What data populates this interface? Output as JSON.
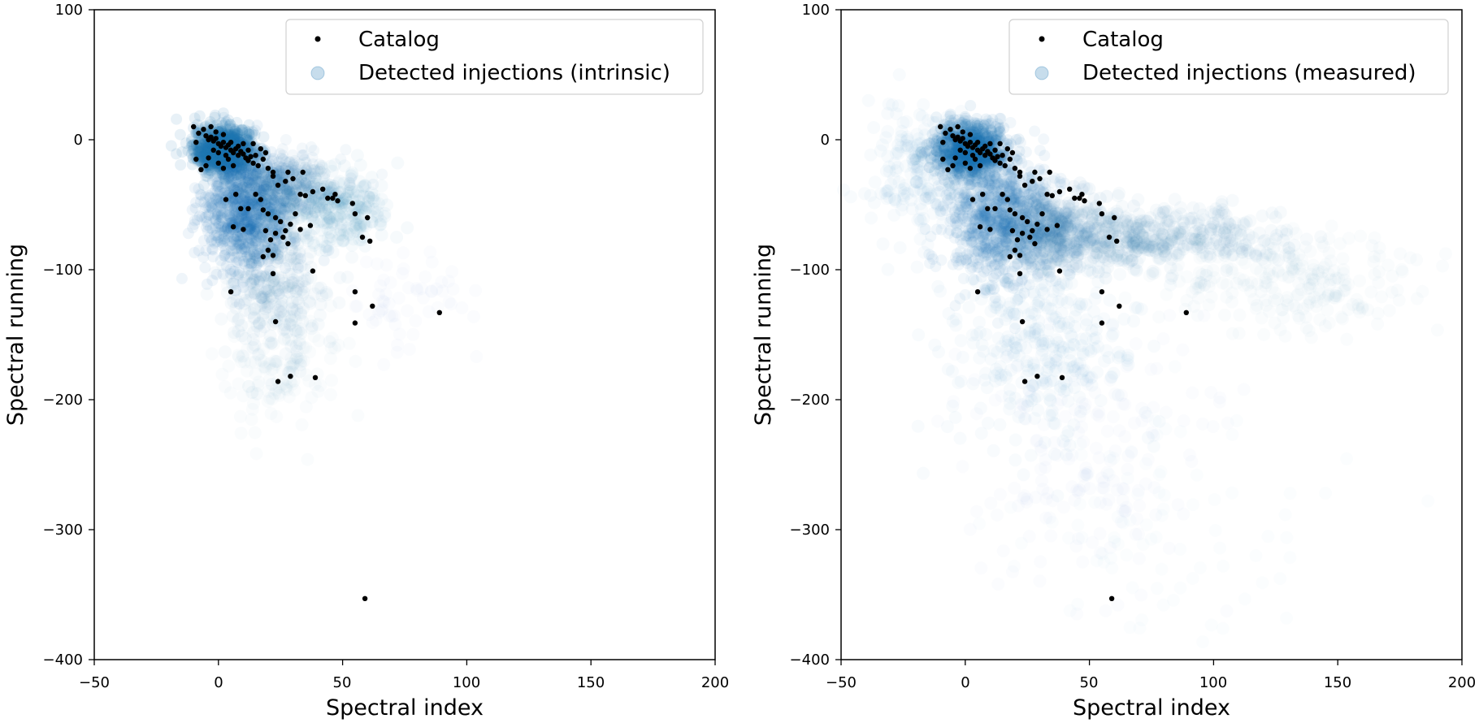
{
  "chart_data": [
    {
      "type": "scatter",
      "title": "",
      "xlabel": "Spectral index",
      "ylabel": "Spectral running",
      "xlim": [
        -50,
        200
      ],
      "ylim": [
        -400,
        100
      ],
      "xticks": [
        -50,
        0,
        50,
        100,
        150,
        200
      ],
      "yticks": [
        100,
        0,
        -100,
        -200,
        -300,
        -400
      ],
      "xtick_labels": [
        "−50",
        "0",
        "50",
        "100",
        "150",
        "200"
      ],
      "ytick_labels": [
        "100",
        "0",
        "−100",
        "−200",
        "−300",
        "−400"
      ],
      "grid": false,
      "legend_position": "top-right",
      "colors": {
        "catalog": "#000000",
        "injections": "#1f77b4"
      },
      "series": [
        {
          "name": "Catalog",
          "role": "catalog",
          "points": [
            [
              -10,
              10
            ],
            [
              -8,
              5
            ],
            [
              -9,
              -2
            ],
            [
              -6,
              8
            ],
            [
              -5,
              3
            ],
            [
              -4,
              0
            ],
            [
              -3,
              2
            ],
            [
              -2,
              -1
            ],
            [
              -1,
              1
            ],
            [
              0,
              -3
            ],
            [
              1,
              -5
            ],
            [
              2,
              -2
            ],
            [
              3,
              -6
            ],
            [
              4,
              -4
            ],
            [
              5,
              -8
            ],
            [
              6,
              -10
            ],
            [
              7,
              -7
            ],
            [
              8,
              -12
            ],
            [
              9,
              -9
            ],
            [
              10,
              -11
            ],
            [
              11,
              -14
            ],
            [
              12,
              -8
            ],
            [
              13,
              -13
            ],
            [
              -3,
              10
            ],
            [
              -1,
              6
            ],
            [
              2,
              4
            ],
            [
              4,
              -15
            ],
            [
              6,
              -20
            ],
            [
              3,
              -12
            ],
            [
              0,
              -10
            ],
            [
              -2,
              -8
            ],
            [
              5,
              -2
            ],
            [
              8,
              -5
            ],
            [
              10,
              -3
            ],
            [
              12,
              -16
            ],
            [
              14,
              -18
            ],
            [
              15,
              -12
            ],
            [
              16,
              -20
            ],
            [
              18,
              -15
            ],
            [
              20,
              -22
            ],
            [
              22,
              -25
            ],
            [
              17,
              -7
            ],
            [
              19,
              -10
            ],
            [
              -7,
              -23
            ],
            [
              -5,
              -20
            ],
            [
              2,
              -22
            ],
            [
              0,
              -18
            ],
            [
              -4,
              -14
            ],
            [
              14,
              -3
            ],
            [
              -9,
              -15
            ],
            [
              28,
              -25
            ],
            [
              30,
              -30
            ],
            [
              34,
              -25
            ],
            [
              24,
              -35
            ],
            [
              27,
              -32
            ],
            [
              22,
              -28
            ],
            [
              33,
              -42
            ],
            [
              35,
              -43
            ],
            [
              38,
              -40
            ],
            [
              42,
              -38
            ],
            [
              46,
              -45
            ],
            [
              48,
              -47
            ],
            [
              47,
              -42
            ],
            [
              44,
              -45
            ],
            [
              54,
              -49
            ],
            [
              55,
              -57
            ],
            [
              60,
              -60
            ],
            [
              61,
              -78
            ],
            [
              58,
              -75
            ],
            [
              3,
              -46
            ],
            [
              7,
              -42
            ],
            [
              9,
              -53
            ],
            [
              12,
              -53
            ],
            [
              6,
              -67
            ],
            [
              10,
              -69
            ],
            [
              15,
              -42
            ],
            [
              17,
              -46
            ],
            [
              18,
              -54
            ],
            [
              20,
              -57
            ],
            [
              23,
              -60
            ],
            [
              25,
              -63
            ],
            [
              27,
              -70
            ],
            [
              29,
              -65
            ],
            [
              19,
              -70
            ],
            [
              21,
              -77
            ],
            [
              23,
              -72
            ],
            [
              26,
              -75
            ],
            [
              28,
              -80
            ],
            [
              31,
              -57
            ],
            [
              33,
              -69
            ],
            [
              20,
              -85
            ],
            [
              22,
              -89
            ],
            [
              18,
              -90
            ],
            [
              22,
              -103
            ],
            [
              38,
              -101
            ],
            [
              37,
              -66
            ],
            [
              5,
              -117
            ],
            [
              55,
              -117
            ],
            [
              62,
              -128
            ],
            [
              55,
              -141
            ],
            [
              23,
              -140
            ],
            [
              89,
              -133
            ],
            [
              39,
              -183
            ],
            [
              29,
              -182
            ],
            [
              24,
              -186
            ],
            [
              59,
              -353
            ]
          ]
        },
        {
          "name": "Detected injections (intrinsic)",
          "role": "injections"
        }
      ]
    },
    {
      "type": "scatter",
      "title": "",
      "xlabel": "Spectral index",
      "ylabel": "Spectral running",
      "xlim": [
        -50,
        200
      ],
      "ylim": [
        -400,
        100
      ],
      "xticks": [
        -50,
        0,
        50,
        100,
        150,
        200
      ],
      "yticks": [
        100,
        0,
        -100,
        -200,
        -300,
        -400
      ],
      "xtick_labels": [
        "−50",
        "0",
        "50",
        "100",
        "150",
        "200"
      ],
      "ytick_labels": [
        "100",
        "0",
        "−100",
        "−200",
        "−300",
        "−400"
      ],
      "grid": false,
      "legend_position": "top-right",
      "colors": {
        "catalog": "#000000",
        "injections": "#1f77b4"
      },
      "series": [
        {
          "name": "Catalog",
          "role": "catalog",
          "points": [
            [
              -10,
              10
            ],
            [
              -8,
              5
            ],
            [
              -9,
              -2
            ],
            [
              -6,
              8
            ],
            [
              -5,
              3
            ],
            [
              -4,
              0
            ],
            [
              -3,
              2
            ],
            [
              -2,
              -1
            ],
            [
              -1,
              1
            ],
            [
              0,
              -3
            ],
            [
              1,
              -5
            ],
            [
              2,
              -2
            ],
            [
              3,
              -6
            ],
            [
              4,
              -4
            ],
            [
              5,
              -8
            ],
            [
              6,
              -10
            ],
            [
              7,
              -7
            ],
            [
              8,
              -12
            ],
            [
              9,
              -9
            ],
            [
              10,
              -11
            ],
            [
              11,
              -14
            ],
            [
              12,
              -8
            ],
            [
              13,
              -13
            ],
            [
              -3,
              10
            ],
            [
              -1,
              6
            ],
            [
              2,
              4
            ],
            [
              4,
              -15
            ],
            [
              6,
              -20
            ],
            [
              3,
              -12
            ],
            [
              0,
              -10
            ],
            [
              -2,
              -8
            ],
            [
              5,
              -2
            ],
            [
              8,
              -5
            ],
            [
              10,
              -3
            ],
            [
              12,
              -16
            ],
            [
              14,
              -18
            ],
            [
              15,
              -12
            ],
            [
              16,
              -20
            ],
            [
              18,
              -15
            ],
            [
              20,
              -22
            ],
            [
              22,
              -25
            ],
            [
              17,
              -7
            ],
            [
              19,
              -10
            ],
            [
              -7,
              -23
            ],
            [
              -5,
              -20
            ],
            [
              2,
              -22
            ],
            [
              0,
              -18
            ],
            [
              -4,
              -14
            ],
            [
              14,
              -3
            ],
            [
              -9,
              -15
            ],
            [
              28,
              -25
            ],
            [
              30,
              -30
            ],
            [
              34,
              -25
            ],
            [
              24,
              -35
            ],
            [
              27,
              -32
            ],
            [
              22,
              -28
            ],
            [
              33,
              -42
            ],
            [
              35,
              -43
            ],
            [
              38,
              -40
            ],
            [
              42,
              -38
            ],
            [
              46,
              -45
            ],
            [
              48,
              -47
            ],
            [
              47,
              -42
            ],
            [
              44,
              -45
            ],
            [
              54,
              -49
            ],
            [
              55,
              -57
            ],
            [
              60,
              -60
            ],
            [
              61,
              -78
            ],
            [
              58,
              -75
            ],
            [
              3,
              -46
            ],
            [
              7,
              -42
            ],
            [
              9,
              -53
            ],
            [
              12,
              -53
            ],
            [
              6,
              -67
            ],
            [
              10,
              -69
            ],
            [
              15,
              -42
            ],
            [
              17,
              -46
            ],
            [
              18,
              -54
            ],
            [
              20,
              -57
            ],
            [
              23,
              -60
            ],
            [
              25,
              -63
            ],
            [
              27,
              -70
            ],
            [
              29,
              -65
            ],
            [
              19,
              -70
            ],
            [
              21,
              -77
            ],
            [
              23,
              -72
            ],
            [
              26,
              -75
            ],
            [
              28,
              -80
            ],
            [
              31,
              -57
            ],
            [
              33,
              -69
            ],
            [
              20,
              -85
            ],
            [
              22,
              -89
            ],
            [
              18,
              -90
            ],
            [
              22,
              -103
            ],
            [
              38,
              -101
            ],
            [
              37,
              -66
            ],
            [
              5,
              -117
            ],
            [
              55,
              -117
            ],
            [
              62,
              -128
            ],
            [
              55,
              -141
            ],
            [
              23,
              -140
            ],
            [
              89,
              -133
            ],
            [
              39,
              -183
            ],
            [
              29,
              -182
            ],
            [
              24,
              -186
            ],
            [
              59,
              -353
            ]
          ]
        },
        {
          "name": "Detected injections (measured)",
          "role": "injections"
        }
      ]
    }
  ]
}
